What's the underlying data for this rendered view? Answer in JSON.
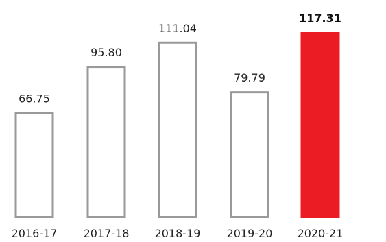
{
  "chart_data": {
    "type": "bar",
    "title": "",
    "xlabel": "",
    "ylabel": "",
    "categories": [
      "2016-17",
      "2017-18",
      "2018-19",
      "2019-20",
      "2020-21"
    ],
    "values": [
      66.75,
      95.8,
      111.04,
      79.79,
      117.31
    ],
    "value_labels": [
      "66.75",
      "95.80",
      "111.04",
      "79.79",
      "117.31"
    ],
    "highlight_index": 4,
    "ylim": [
      0,
      120
    ],
    "grid": false,
    "legend": "none",
    "colors": {
      "bar_outline": "#9a9a9a",
      "bar_fill": "#ffffff",
      "highlight_fill": "#ec1c24",
      "text": "#222222"
    }
  }
}
